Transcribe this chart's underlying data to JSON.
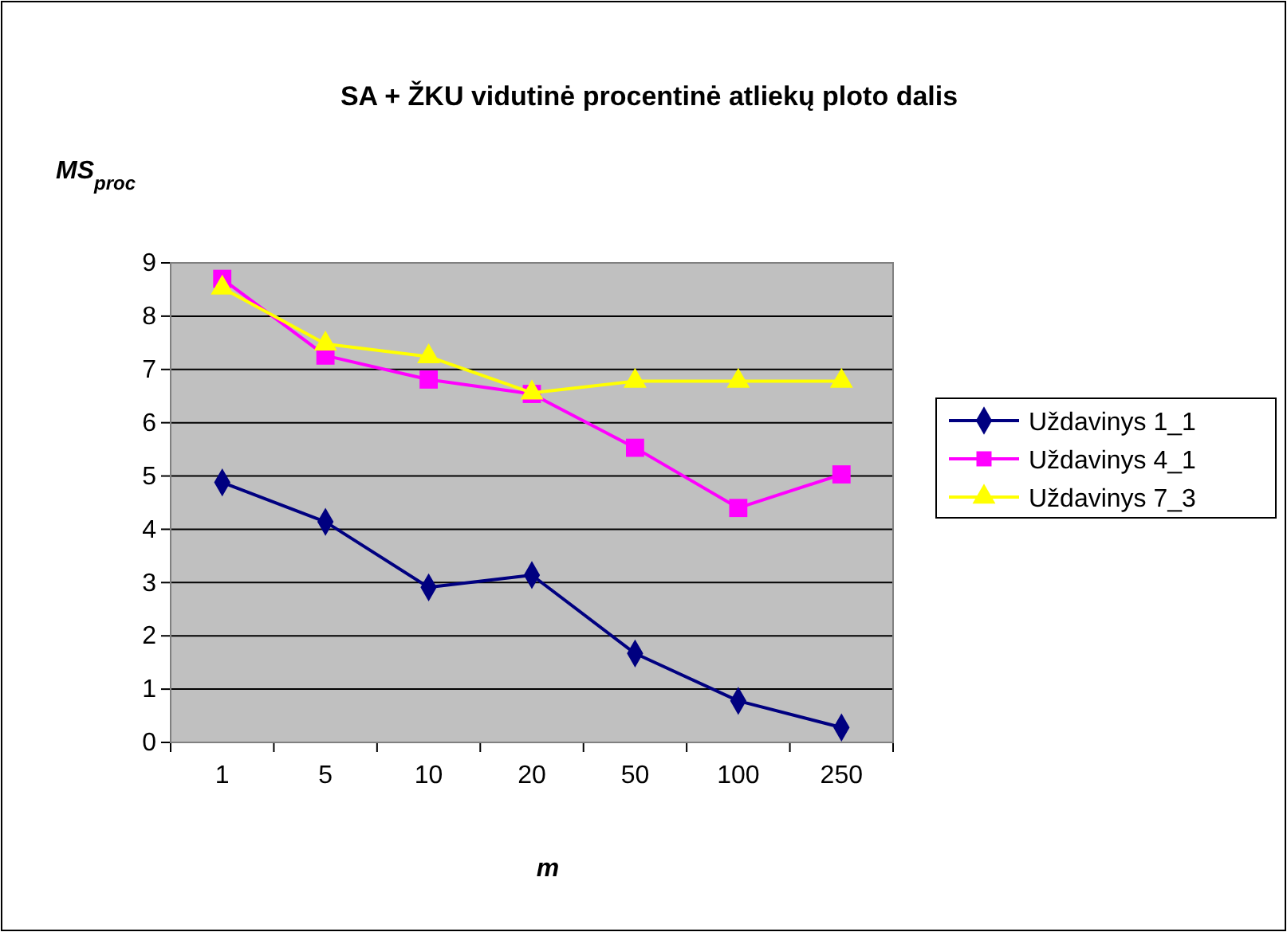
{
  "chart_data": {
    "type": "line",
    "title": "SA + ŽKU vidutinė procentinė atliekų ploto dalis",
    "ylabel": "MS$_{proc}$",
    "xlabel": "m",
    "categories": [
      "1",
      "5",
      "10",
      "20",
      "50",
      "100",
      "250"
    ],
    "series": [
      {
        "name": "Uždavinys 1_1",
        "color": "#000080",
        "marker": "diamond",
        "values": [
          4.88,
          4.14,
          2.91,
          3.14,
          1.67,
          0.78,
          0.28
        ]
      },
      {
        "name": "Uždavinys 4_1",
        "color": "#ff00ff",
        "marker": "square",
        "values": [
          8.7,
          7.26,
          6.81,
          6.54,
          5.53,
          4.4,
          5.03
        ]
      },
      {
        "name": "Uždavinys 7_3",
        "color": "#ffff00",
        "marker": "triangle",
        "values": [
          8.53,
          7.48,
          7.24,
          6.56,
          6.78,
          6.78,
          6.78
        ]
      }
    ],
    "ylim": [
      0,
      9
    ],
    "yticks": [
      0,
      1,
      2,
      3,
      4,
      5,
      6,
      7,
      8,
      9
    ],
    "grid": "y",
    "legend": "right"
  }
}
